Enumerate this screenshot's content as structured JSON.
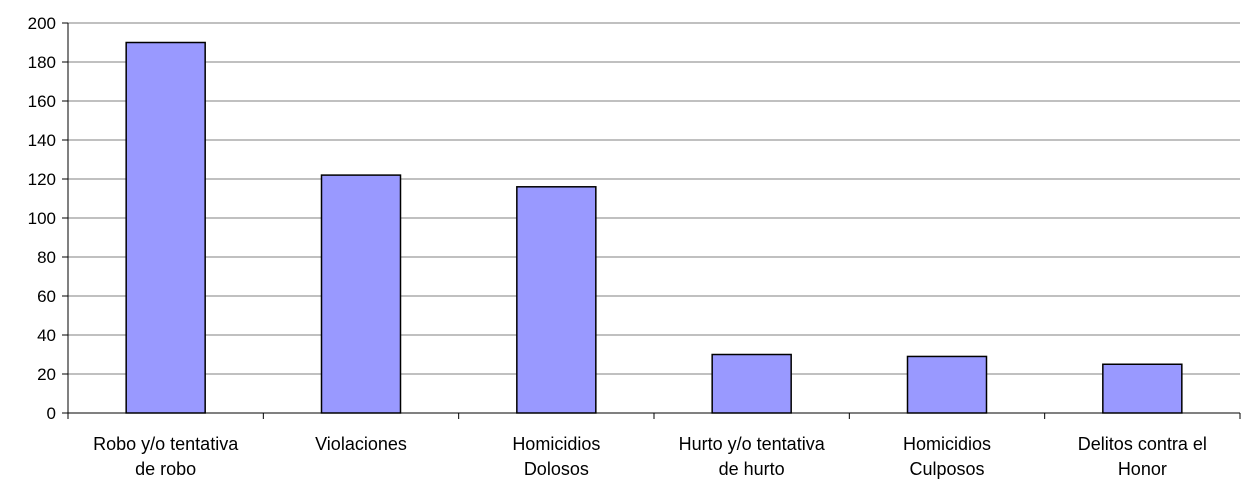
{
  "chart_data": {
    "type": "bar",
    "title": "",
    "xlabel": "",
    "ylabel": "",
    "categories": [
      [
        "Robo y/o tentativa",
        "de robo"
      ],
      [
        "Violaciones"
      ],
      [
        "Homicidios",
        "Dolosos"
      ],
      [
        "Hurto y/o tentativa",
        "de hurto"
      ],
      [
        "Homicidios",
        "Culposos"
      ],
      [
        "Delitos contra el",
        "Honor"
      ]
    ],
    "values": [
      190,
      122,
      116,
      30,
      29,
      25
    ],
    "ylim": [
      0,
      200
    ],
    "yticks": [
      0,
      20,
      40,
      60,
      80,
      100,
      120,
      140,
      160,
      180,
      200
    ],
    "grid": true,
    "legend": "none",
    "colors": {
      "bar_fill": "#9999ff",
      "bar_stroke": "#000000",
      "grid": "#808080",
      "axis": "#000000"
    }
  }
}
